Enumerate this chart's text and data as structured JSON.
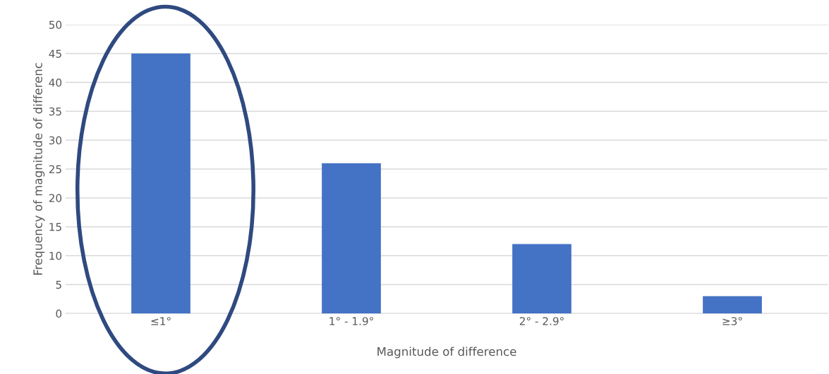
{
  "chart_data": {
    "type": "bar",
    "categories": [
      "≤1°",
      "1° - 1.9°",
      "2° - 2.9°",
      "≥3°"
    ],
    "values": [
      45,
      26,
      12,
      3
    ],
    "color": "#4472c4",
    "xlabel": "Magnitude of difference",
    "ylabel": "Frequency of magnitude of differenc",
    "ylim": [
      0,
      50
    ],
    "yticks": [
      0,
      5,
      10,
      15,
      20,
      25,
      30,
      35,
      40,
      45,
      50
    ],
    "grid": "y"
  }
}
